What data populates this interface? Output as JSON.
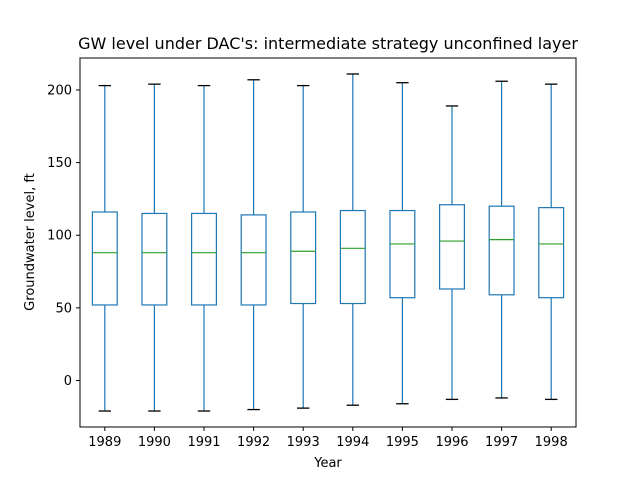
{
  "chart_data": {
    "type": "boxplot",
    "title": "GW level under DAC's: intermediate strategy unconfined layer",
    "xlabel": "Year",
    "ylabel": "Groundwater level, ft",
    "ylim": [
      -32,
      222
    ],
    "yticks": [
      0,
      50,
      100,
      150,
      200
    ],
    "categories": [
      "1989",
      "1990",
      "1991",
      "1992",
      "1993",
      "1994",
      "1995",
      "1996",
      "1997",
      "1998"
    ],
    "boxes": [
      {
        "whislo": -21,
        "q1": 52,
        "med": 88,
        "q3": 116,
        "whishi": 203
      },
      {
        "whislo": -21,
        "q1": 52,
        "med": 88,
        "q3": 115,
        "whishi": 204
      },
      {
        "whislo": -21,
        "q1": 52,
        "med": 88,
        "q3": 115,
        "whishi": 203
      },
      {
        "whislo": -20,
        "q1": 52,
        "med": 88,
        "q3": 114,
        "whishi": 207
      },
      {
        "whislo": -19,
        "q1": 53,
        "med": 89,
        "q3": 116,
        "whishi": 203
      },
      {
        "whislo": -17,
        "q1": 53,
        "med": 91,
        "q3": 117,
        "whishi": 211
      },
      {
        "whislo": -16,
        "q1": 57,
        "med": 94,
        "q3": 117,
        "whishi": 205
      },
      {
        "whislo": -13,
        "q1": 63,
        "med": 96,
        "q3": 121,
        "whishi": 189
      },
      {
        "whislo": -12,
        "q1": 59,
        "med": 97,
        "q3": 120,
        "whishi": 206
      },
      {
        "whislo": -13,
        "q1": 57,
        "med": 94,
        "q3": 119,
        "whishi": 204
      }
    ],
    "colors": {
      "box": "#1f77b4",
      "median": "#2ca02c",
      "whisker": "#1f77b4",
      "cap": "#000000",
      "axis": "#000000"
    }
  }
}
